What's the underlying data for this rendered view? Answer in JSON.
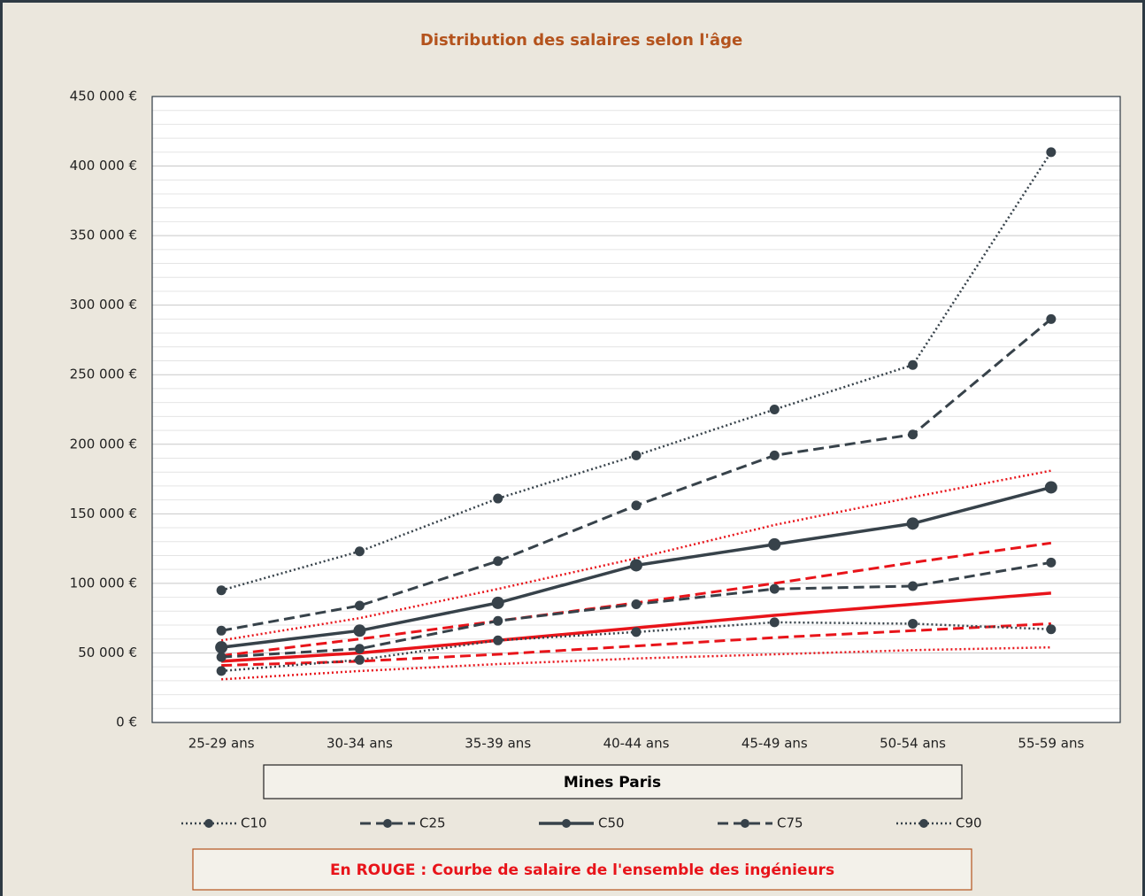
{
  "chart_data": {
    "type": "line",
    "title": "Distribution des salaires selon l'âge",
    "x_label": "Mines Paris",
    "annotation": "En ROUGE : Courbe de salaire de l'ensemble des ingénieurs",
    "categories": [
      "25-29 ans",
      "30-34 ans",
      "35-39 ans",
      "40-44 ans",
      "45-49 ans",
      "50-54 ans",
      "55-59 ans"
    ],
    "series": [
      {
        "name": "C10",
        "color": "#37424a",
        "dash": "dotted",
        "values": [
          37000,
          45000,
          59000,
          65000,
          72000,
          71000,
          67000
        ]
      },
      {
        "name": "C25",
        "color": "#37424a",
        "dash": "dashed",
        "values": [
          47000,
          53000,
          73000,
          85000,
          96000,
          98000,
          115000
        ]
      },
      {
        "name": "C50",
        "color": "#37424a",
        "dash": "solid",
        "values": [
          54000,
          66000,
          86000,
          113000,
          128000,
          143000,
          169000
        ]
      },
      {
        "name": "C75",
        "color": "#37424a",
        "dash": "dashed",
        "values": [
          66000,
          84000,
          116000,
          156000,
          192000,
          207000,
          290000
        ]
      },
      {
        "name": "C90",
        "color": "#37424a",
        "dash": "dotted",
        "values": [
          95000,
          123000,
          161000,
          192000,
          225000,
          257000,
          410000
        ]
      }
    ],
    "reference_series": [
      {
        "color": "#e8141a",
        "dash": "dotted",
        "values": [
          31000,
          37000,
          42000,
          46000,
          49000,
          52000,
          54000
        ]
      },
      {
        "color": "#e8141a",
        "dash": "dashed",
        "values": [
          41000,
          44000,
          49000,
          55000,
          61000,
          66000,
          71000
        ]
      },
      {
        "color": "#e8141a",
        "dash": "solid",
        "values": [
          44000,
          50000,
          59000,
          68000,
          77000,
          85000,
          93000
        ]
      },
      {
        "color": "#e8141a",
        "dash": "dashed",
        "values": [
          48000,
          60000,
          73000,
          86000,
          100000,
          115000,
          129000
        ]
      },
      {
        "color": "#e8141a",
        "dash": "dotted",
        "values": [
          59000,
          75000,
          96000,
          118000,
          142000,
          162000,
          181000
        ]
      }
    ],
    "ylim": [
      0,
      450000
    ],
    "yticks": [
      {
        "value": 0,
        "label": "0 €"
      },
      {
        "value": 50000,
        "label": "50 000 €"
      },
      {
        "value": 100000,
        "label": "100 000 €"
      },
      {
        "value": 150000,
        "label": "150 000 €"
      },
      {
        "value": 200000,
        "label": "200 000 €"
      },
      {
        "value": 250000,
        "label": "250 000 €"
      },
      {
        "value": 300000,
        "label": "300 000 €"
      },
      {
        "value": 350000,
        "label": "350 000 €"
      },
      {
        "value": 400000,
        "label": "400 000 €"
      },
      {
        "value": 450000,
        "label": "450 000 €"
      }
    ],
    "grid": true
  }
}
